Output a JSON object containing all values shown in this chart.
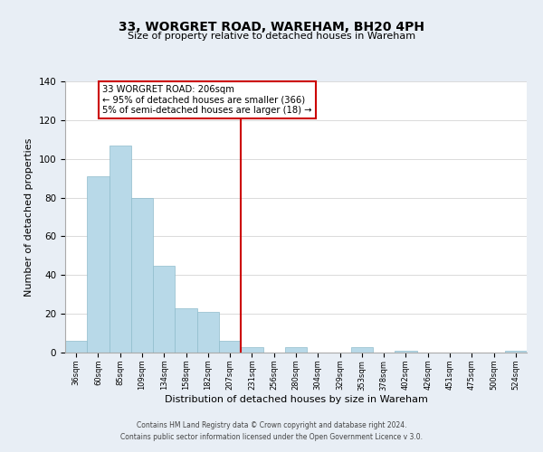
{
  "title": "33, WORGRET ROAD, WAREHAM, BH20 4PH",
  "subtitle": "Size of property relative to detached houses in Wareham",
  "xlabel": "Distribution of detached houses by size in Wareham",
  "ylabel": "Number of detached properties",
  "bar_color": "#b8d9e8",
  "bar_edge_color": "#8fbccc",
  "vline_color": "#cc0000",
  "bin_labels": [
    "36sqm",
    "60sqm",
    "85sqm",
    "109sqm",
    "134sqm",
    "158sqm",
    "182sqm",
    "207sqm",
    "231sqm",
    "256sqm",
    "280sqm",
    "304sqm",
    "329sqm",
    "353sqm",
    "378sqm",
    "402sqm",
    "426sqm",
    "451sqm",
    "475sqm",
    "500sqm",
    "524sqm"
  ],
  "bar_heights": [
    6,
    91,
    107,
    80,
    45,
    23,
    21,
    6,
    3,
    0,
    3,
    0,
    0,
    3,
    0,
    1,
    0,
    0,
    0,
    0,
    1
  ],
  "ylim": [
    0,
    140
  ],
  "yticks": [
    0,
    20,
    40,
    60,
    80,
    100,
    120,
    140
  ],
  "annotation_title": "33 WORGRET ROAD: 206sqm",
  "annotation_line1": "← 95% of detached houses are smaller (366)",
  "annotation_line2": "5% of semi-detached houses are larger (18) →",
  "annotation_box_color": "#ffffff",
  "annotation_box_edge": "#cc0000",
  "footer1": "Contains HM Land Registry data © Crown copyright and database right 2024.",
  "footer2": "Contains public sector information licensed under the Open Government Licence v 3.0.",
  "background_color": "#e8eef5",
  "plot_background": "#ffffff",
  "title_fontsize": 10,
  "subtitle_fontsize": 8,
  "ylabel_fontsize": 8,
  "xlabel_fontsize": 8
}
